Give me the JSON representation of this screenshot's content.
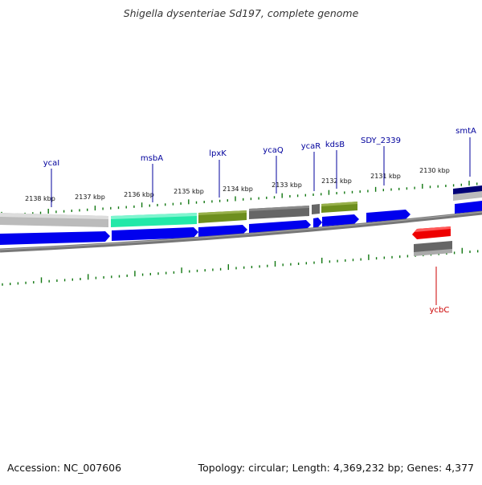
{
  "title": "Shigella dysenteriae Sd197, complete genome",
  "footer": {
    "accession": "Accession: NC_007606",
    "summary": "Topology: circular; Length: 4,369,232 bp; Genes: 4,377"
  },
  "colors": {
    "forward_cds": "#0000ee",
    "reverse_cds": "#ee0000",
    "tick": "#117711",
    "label_forward": "#00009c",
    "label_reverse": "#cc0000",
    "track_gray": "#666666",
    "track_light": "#bbbbbb",
    "highlight_green": "#22e8a8",
    "highlight_olive": "#6e8f1e",
    "dark_navy": "#000077"
  },
  "scale_labels": [
    "2138 kbp",
    "2137 kbp",
    "2136 kbp",
    "2135 kbp",
    "2134 kbp",
    "2133 kbp",
    "2132 kbp",
    "2131 kbp",
    "2130 kbp"
  ],
  "genes": [
    {
      "name": "ycaI",
      "strand": "forward"
    },
    {
      "name": "msbA",
      "strand": "forward"
    },
    {
      "name": "lpxK",
      "strand": "forward"
    },
    {
      "name": "ycaQ",
      "strand": "forward"
    },
    {
      "name": "ycaR",
      "strand": "forward"
    },
    {
      "name": "kdsB",
      "strand": "forward"
    },
    {
      "name": "SDY_2339",
      "strand": "forward"
    },
    {
      "name": "smtA",
      "strand": "forward"
    },
    {
      "name": "ycbC",
      "strand": "reverse"
    }
  ]
}
